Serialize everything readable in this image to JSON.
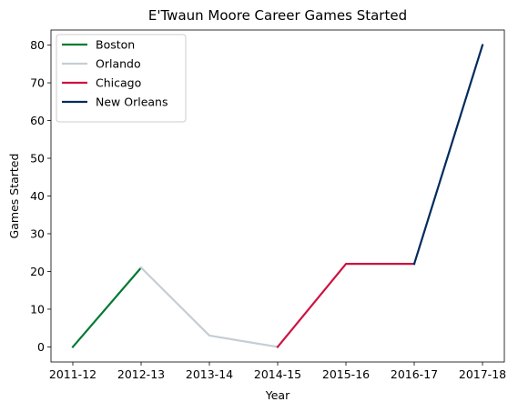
{
  "chart_data": {
    "type": "line",
    "title": "E'Twaun Moore Career Games Started",
    "xlabel": "Year",
    "ylabel": "Games Started",
    "categories": [
      "2011-12",
      "2012-13",
      "2013-14",
      "2014-15",
      "2015-16",
      "2016-17",
      "2017-18"
    ],
    "yticks": [
      0,
      10,
      20,
      30,
      40,
      50,
      60,
      70,
      80
    ],
    "ylim": [
      -4,
      84
    ],
    "grid": false,
    "legend_position": "top-left",
    "series": [
      {
        "name": "Boston",
        "color": "#007A33",
        "x": [
          "2011-12",
          "2012-13"
        ],
        "values": [
          0,
          21
        ]
      },
      {
        "name": "Orlando",
        "color": "#C4CED4",
        "x": [
          "2012-13",
          "2013-14",
          "2014-15"
        ],
        "values": [
          21,
          3,
          0
        ]
      },
      {
        "name": "Chicago",
        "color": "#CE1141",
        "x": [
          "2014-15",
          "2015-16",
          "2016-17"
        ],
        "values": [
          0,
          22,
          22
        ]
      },
      {
        "name": "New Orleans",
        "color": "#002B5C",
        "x": [
          "2016-17",
          "2017-18"
        ],
        "values": [
          22,
          80
        ]
      }
    ]
  }
}
